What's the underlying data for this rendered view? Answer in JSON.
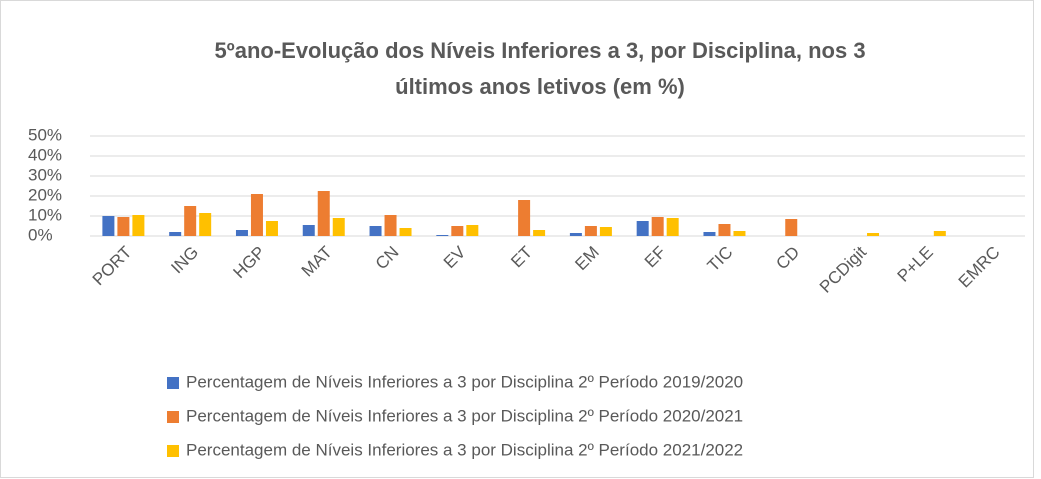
{
  "chart_data": {
    "type": "bar",
    "title_lines": [
      "5ºano-Evolução dos Níveis Inferiores a 3, por Disciplina, nos 3",
      "últimos anos letivos (em %)"
    ],
    "categories": [
      "PORT",
      "ING",
      "HGP",
      "MAT",
      "CN",
      "EV",
      "ET",
      "EM",
      "EF",
      "TIC",
      "CD",
      "PCDigit",
      "P+LE",
      "EMRC"
    ],
    "series": [
      {
        "name": "Percentagem de Níveis Inferiores a 3 por Disciplina 2º Período 2019/2020",
        "color": "#4472c4",
        "values": [
          10,
          2,
          3,
          5.5,
          5,
          0.5,
          null,
          1.5,
          7.5,
          2,
          null,
          null,
          null,
          null
        ]
      },
      {
        "name": "Percentagem de Níveis Inferiores a 3 por Disciplina 2º Período 2020/2021",
        "color": "#ed7d31",
        "values": [
          9.5,
          15,
          21,
          22.5,
          10.5,
          5,
          18,
          5,
          9.5,
          6,
          8.5,
          null,
          null,
          null
        ]
      },
      {
        "name": "Percentagem de Níveis Inferiores a 3 por Disciplina 2º Período 2021/2022",
        "color": "#ffc000",
        "values": [
          10.5,
          11.5,
          7.5,
          9,
          4,
          5.5,
          3,
          4.5,
          9,
          2.5,
          null,
          1.5,
          2.5,
          null
        ]
      }
    ],
    "ylim": [
      0,
      50
    ],
    "yticks": [
      {
        "value": 0,
        "label": "0%"
      },
      {
        "value": 10,
        "label": "10%"
      },
      {
        "value": 20,
        "label": "20%"
      },
      {
        "value": 30,
        "label": "30%"
      },
      {
        "value": 40,
        "label": "40%"
      },
      {
        "value": 50,
        "label": "50%"
      }
    ],
    "grid": true
  }
}
